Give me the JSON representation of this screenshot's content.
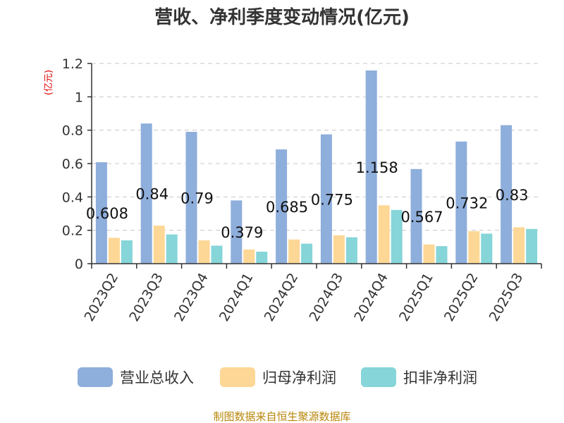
{
  "chart_data": {
    "type": "bar",
    "title": "营收、净利季度变动情况(亿元)",
    "ylabel": "(亿元)",
    "xlabel": "",
    "ylim": [
      0,
      1.2
    ],
    "yticks": [
      "0",
      "0.2",
      "0.4",
      "0.6",
      "0.8",
      "1",
      "1.2"
    ],
    "grid": true,
    "legend_position": "bottom",
    "categories": [
      "2023Q2",
      "2023Q3",
      "2023Q4",
      "2024Q1",
      "2024Q2",
      "2024Q3",
      "2024Q4",
      "2025Q1",
      "2025Q2",
      "2025Q3"
    ],
    "series": [
      {
        "name": "营业总收入",
        "color": "#8eaedc",
        "values": [
          0.608,
          0.84,
          0.79,
          0.379,
          0.685,
          0.775,
          1.158,
          0.567,
          0.732,
          0.83
        ],
        "labels": [
          "0.608",
          "0.84",
          "0.79",
          "0.379",
          "0.685",
          "0.775",
          "1.158",
          "0.567",
          "0.732",
          "0.83"
        ]
      },
      {
        "name": "归母净利润",
        "color": "#fdd796",
        "values": [
          0.155,
          0.228,
          0.14,
          0.085,
          0.145,
          0.17,
          0.35,
          0.115,
          0.195,
          0.218
        ]
      },
      {
        "name": "扣非净利润",
        "color": "#86d5d8",
        "values": [
          0.14,
          0.175,
          0.108,
          0.072,
          0.12,
          0.158,
          0.322,
          0.105,
          0.18,
          0.208
        ]
      }
    ],
    "source": "制图数据来自恒生聚源数据库"
  }
}
